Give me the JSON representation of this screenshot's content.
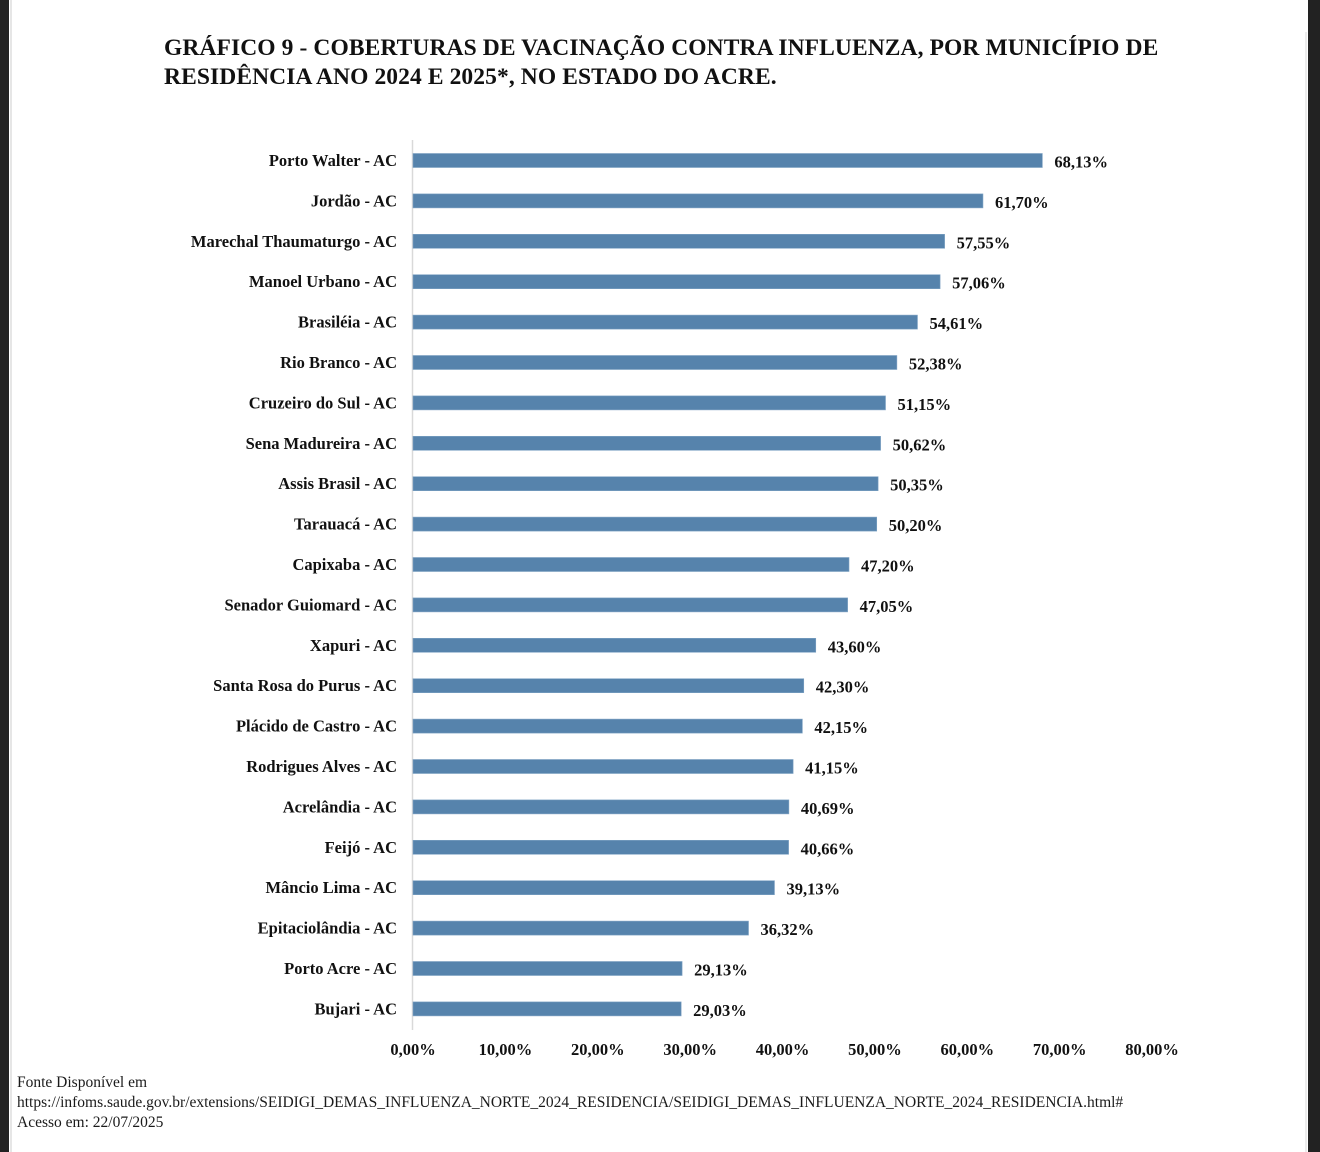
{
  "chart_data": {
    "type": "bar",
    "orientation": "horizontal",
    "title": "GRÁFICO 9 - COBERTURAS DE VACINAÇÃO CONTRA INFLUENZA, POR MUNICÍPIO DE RESIDÊNCIA ANO 2024 E 2025*, NO ESTADO DO ACRE.",
    "title_lines": [
      "GRÁFICO 9 - COBERTURAS DE VACINAÇÃO CONTRA INFLUENZA, POR MUNICÍPIO DE",
      "RESIDÊNCIA ANO 2024 E 2025*, NO ESTADO DO ACRE."
    ],
    "xlabel": "",
    "ylabel": "",
    "xlim": [
      0,
      80
    ],
    "x_ticks": [
      0,
      10,
      20,
      30,
      40,
      50,
      60,
      70,
      80
    ],
    "x_tick_labels": [
      "0,00%",
      "10,00%",
      "20,00%",
      "30,00%",
      "40,00%",
      "50,00%",
      "60,00%",
      "70,00%",
      "80,00%"
    ],
    "grid": false,
    "legend": "none",
    "bar_color": "#5683AC",
    "categories": [
      "Porto Walter - AC",
      "Jordão - AC",
      "Marechal Thaumaturgo - AC",
      "Manoel Urbano - AC",
      "Brasiléia - AC",
      "Rio Branco - AC",
      "Cruzeiro do Sul - AC",
      "Sena Madureira - AC",
      "Assis Brasil - AC",
      "Tarauacá - AC",
      "Capixaba - AC",
      "Senador Guiomard - AC",
      "Xapuri - AC",
      "Santa Rosa do Purus - AC",
      "Plácido de Castro - AC",
      "Rodrigues Alves - AC",
      "Acrelândia - AC",
      "Feijó - AC",
      "Mâncio Lima - AC",
      "Epitaciolândia - AC",
      "Porto Acre - AC",
      "Bujari - AC"
    ],
    "values": [
      68.13,
      61.7,
      57.55,
      57.06,
      54.61,
      52.38,
      51.15,
      50.62,
      50.35,
      50.2,
      47.2,
      47.05,
      43.6,
      42.3,
      42.15,
      41.15,
      40.69,
      40.66,
      39.13,
      36.32,
      29.13,
      29.03
    ],
    "value_labels": [
      "68,13%",
      "61,70%",
      "57,55%",
      "57,06%",
      "54,61%",
      "52,38%",
      "51,15%",
      "50,62%",
      "50,35%",
      "50,20%",
      "47,20%",
      "47,05%",
      "43,60%",
      "42,30%",
      "42,15%",
      "41,15%",
      "40,69%",
      "40,66%",
      "39,13%",
      "36,32%",
      "29,13%",
      "29,03%"
    ]
  },
  "source": {
    "line1": "Fonte Disponível em",
    "url": "https://infoms.saude.gov.br/extensions/SEIDIGI_DEMAS_INFLUENZA_NORTE_2024_RESIDENCIA/SEIDIGI_DEMAS_INFLUENZA_NORTE_2024_RESIDENCIA.html#",
    "access": "Acesso em: 22/07/2025"
  }
}
